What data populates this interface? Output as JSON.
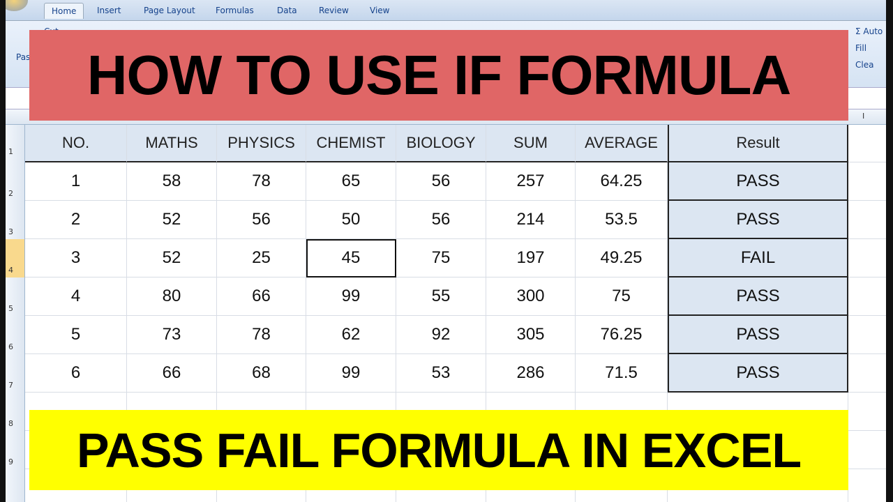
{
  "ribbon": {
    "tabs": [
      "Home",
      "Insert",
      "Page Layout",
      "Formulas",
      "Data",
      "Review",
      "View"
    ],
    "active_tab": "Home",
    "clipboard": {
      "paste": "Pas",
      "cut": "Cut"
    },
    "editing": {
      "autosum": "Σ Auto",
      "fill": "Fill",
      "clear": "Clea"
    }
  },
  "column_letter_visible": "I",
  "row_numbers": [
    "1",
    "2",
    "3",
    "4",
    "5",
    "6",
    "7",
    "8",
    "9"
  ],
  "selected_row": "4",
  "table": {
    "headers": [
      "NO.",
      "MATHS",
      "PHYSICS",
      "CHEMIST",
      "BIOLOGY",
      "SUM",
      "AVERAGE",
      "Result"
    ],
    "rows": [
      [
        "1",
        "58",
        "78",
        "65",
        "56",
        "257",
        "64.25",
        "PASS"
      ],
      [
        "2",
        "52",
        "56",
        "50",
        "56",
        "214",
        "53.5",
        "PASS"
      ],
      [
        "3",
        "52",
        "25",
        "45",
        "75",
        "197",
        "49.25",
        "FAIL"
      ],
      [
        "4",
        "80",
        "66",
        "99",
        "55",
        "300",
        "75",
        "PASS"
      ],
      [
        "5",
        "73",
        "78",
        "62",
        "92",
        "305",
        "76.25",
        "PASS"
      ],
      [
        "6",
        "66",
        "68",
        "99",
        "53",
        "286",
        "71.5",
        "PASS"
      ]
    ],
    "active_cell": {
      "row": 2,
      "col": 3
    }
  },
  "banners": {
    "top": "HOW TO USE IF FORMULA",
    "bottom": "PASS FAIL FORMULA IN EXCEL",
    "top_color": "#e06666",
    "bottom_color": "#ffff00"
  }
}
